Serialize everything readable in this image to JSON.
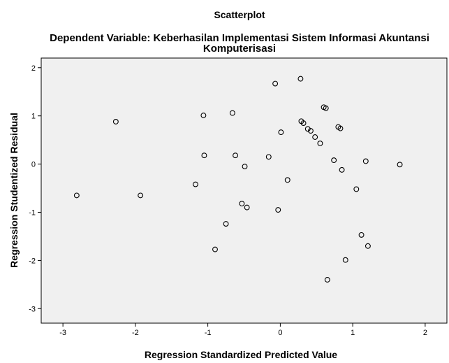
{
  "chart_data": {
    "type": "scatter",
    "title": "Scatterplot",
    "subtitle_lines": [
      "Dependent Variable: Keberhasilan Implementasi Sistem Informasi Akuntansi",
      "Komputerisasi"
    ],
    "xlabel": "Regression Standardized Predicted Value",
    "ylabel": "Regression Studentized Residual",
    "xlim": [
      -3.3,
      2.3
    ],
    "ylim": [
      -3.3,
      2.2
    ],
    "x_ticks": [
      "-3",
      "-2",
      "-1",
      "0",
      "1",
      "2"
    ],
    "x_tick_values": [
      -3,
      -2,
      -1,
      0,
      1,
      2
    ],
    "y_ticks": [
      "2",
      "1",
      "0",
      "-1",
      "-2",
      "-3"
    ],
    "y_tick_values": [
      2,
      1,
      0,
      -1,
      -2,
      -3
    ],
    "grid": false,
    "plot_background": "#f0f0f0",
    "marker": "open-circle",
    "points": [
      {
        "x": -2.81,
        "y": -0.65
      },
      {
        "x": -2.27,
        "y": 0.88
      },
      {
        "x": -1.93,
        "y": -0.65
      },
      {
        "x": -1.17,
        "y": -0.42
      },
      {
        "x": -1.06,
        "y": 1.01
      },
      {
        "x": -1.05,
        "y": 0.18
      },
      {
        "x": -0.9,
        "y": -1.77
      },
      {
        "x": -0.75,
        "y": -1.24
      },
      {
        "x": -0.66,
        "y": 1.06
      },
      {
        "x": -0.62,
        "y": 0.18
      },
      {
        "x": -0.53,
        "y": -0.82
      },
      {
        "x": -0.49,
        "y": -0.05
      },
      {
        "x": -0.46,
        "y": -0.9
      },
      {
        "x": -0.16,
        "y": 0.15
      },
      {
        "x": -0.07,
        "y": 1.67
      },
      {
        "x": -0.03,
        "y": -0.95
      },
      {
        "x": 0.01,
        "y": 0.66
      },
      {
        "x": 0.1,
        "y": -0.33
      },
      {
        "x": 0.28,
        "y": 1.77
      },
      {
        "x": 0.29,
        "y": 0.89
      },
      {
        "x": 0.32,
        "y": 0.85
      },
      {
        "x": 0.38,
        "y": 0.73
      },
      {
        "x": 0.42,
        "y": 0.69
      },
      {
        "x": 0.48,
        "y": 0.56
      },
      {
        "x": 0.55,
        "y": 0.43
      },
      {
        "x": 0.6,
        "y": 1.18
      },
      {
        "x": 0.63,
        "y": 1.16
      },
      {
        "x": 0.65,
        "y": -2.4
      },
      {
        "x": 0.74,
        "y": 0.08
      },
      {
        "x": 0.8,
        "y": 0.77
      },
      {
        "x": 0.83,
        "y": 0.74
      },
      {
        "x": 0.85,
        "y": -0.12
      },
      {
        "x": 0.9,
        "y": -1.99
      },
      {
        "x": 1.05,
        "y": -0.52
      },
      {
        "x": 1.12,
        "y": -1.47
      },
      {
        "x": 1.18,
        "y": 0.06
      },
      {
        "x": 1.21,
        "y": -1.7
      },
      {
        "x": 1.65,
        "y": -0.01
      }
    ]
  }
}
